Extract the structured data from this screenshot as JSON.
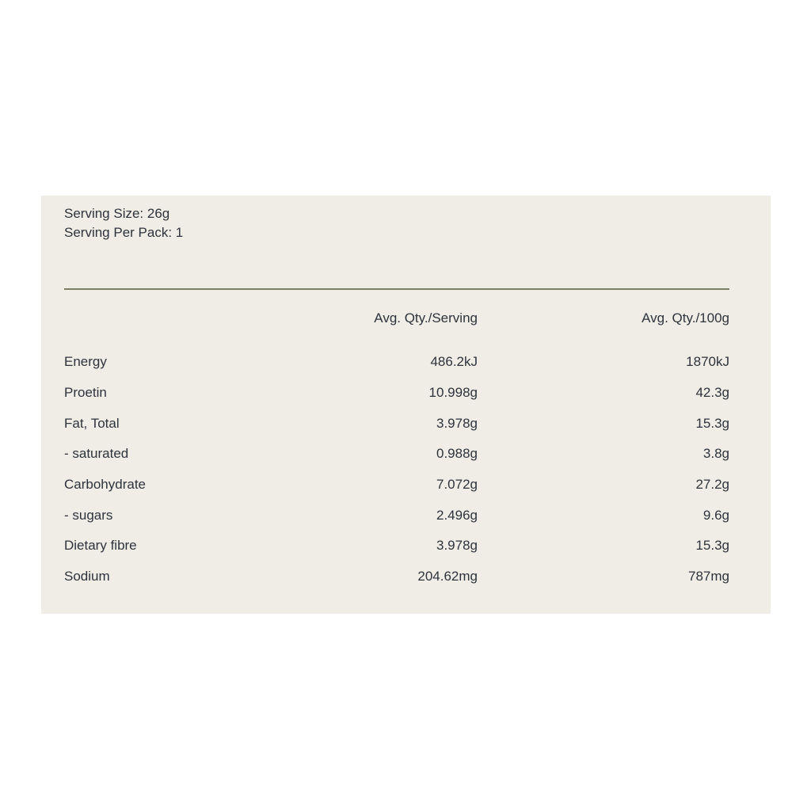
{
  "panel": {
    "serving_size": "Serving Size: 26g",
    "serving_per_pack": "Serving Per Pack: 1",
    "columns": {
      "serving": "Avg. Qty./Serving",
      "per100g": "Avg. Qty./100g"
    },
    "rows": [
      {
        "label": "Energy",
        "serving": "486.2kJ",
        "per100g": "1870kJ"
      },
      {
        "label": "Proetin",
        "serving": "10.998g",
        "per100g": "42.3g"
      },
      {
        "label": "Fat, Total",
        "serving": "3.978g",
        "per100g": "15.3g"
      },
      {
        "label": "- saturated",
        "serving": "0.988g",
        "per100g": "3.8g"
      },
      {
        "label": "Carbohydrate",
        "serving": "7.072g",
        "per100g": "27.2g"
      },
      {
        "label": "- sugars",
        "serving": "2.496g",
        "per100g": "9.6g"
      },
      {
        "label": "Dietary fibre",
        "serving": "3.978g",
        "per100g": "15.3g"
      },
      {
        "label": "Sodium",
        "serving": "204.62mg",
        "per100g": "787mg"
      }
    ],
    "colors": {
      "page_bg": "#ffffff",
      "panel_bg": "#f0ede6",
      "text": "#2d333c",
      "divider": "#798066"
    }
  },
  "chart_data": {
    "type": "table",
    "title": "",
    "columns": [
      "",
      "Avg. Qty./Serving",
      "Avg. Qty./100g"
    ],
    "rows": [
      [
        "Energy",
        "486.2kJ",
        "1870kJ"
      ],
      [
        "Proetin",
        "10.998g",
        "42.3g"
      ],
      [
        "Fat, Total",
        "3.978g",
        "15.3g"
      ],
      [
        "- saturated",
        "0.988g",
        "3.8g"
      ],
      [
        "Carbohydrate",
        "7.072g",
        "27.2g"
      ],
      [
        "- sugars",
        "2.496g",
        "9.6g"
      ],
      [
        "Dietary fibre",
        "3.978g",
        "15.3g"
      ],
      [
        "Sodium",
        "204.62mg",
        "787mg"
      ]
    ]
  }
}
